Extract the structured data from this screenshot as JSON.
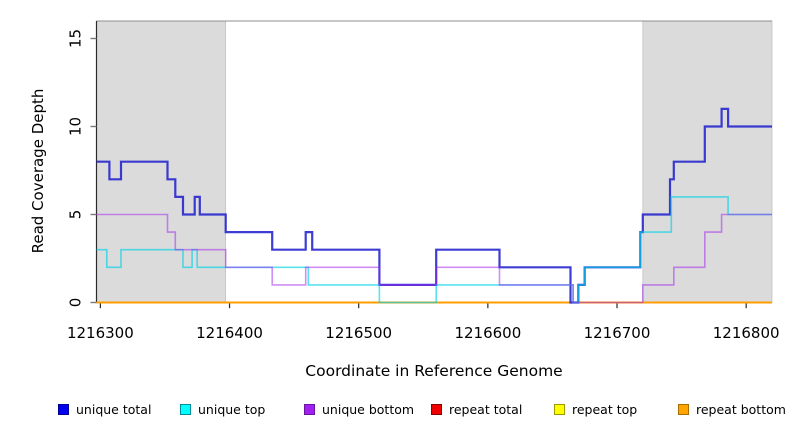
{
  "figure": {
    "xlabel": "Coordinate in Reference Genome",
    "ylabel": "Read Coverage Depth"
  },
  "legend": {
    "items": [
      {
        "label": "unique total",
        "color": "#0000EE",
        "border": "#000099"
      },
      {
        "label": "unique top",
        "color": "#00FFFF",
        "border": "#008B9B"
      },
      {
        "label": "unique bottom",
        "color": "#A020F0",
        "border": "#6A14A0"
      },
      {
        "label": "repeat total",
        "color": "#EE0000",
        "border": "#8B0000"
      },
      {
        "label": "repeat top",
        "color": "#FFFF00",
        "border": "#9B9B00"
      },
      {
        "label": "repeat bottom",
        "color": "#FFA500",
        "border": "#A86D00"
      }
    ]
  },
  "chart_data": {
    "type": "line",
    "subtype": "step",
    "title": "",
    "xlabel": "Coordinate in Reference Genome",
    "ylabel": "Read Coverage Depth",
    "xlim": [
      1216297,
      1216820
    ],
    "ylim": [
      0,
      16
    ],
    "x_ticks": [
      1216300,
      1216400,
      1216500,
      1216600,
      1216700,
      1216800
    ],
    "y_ticks": [
      0,
      5,
      10,
      15
    ],
    "grid": false,
    "legend_position": "bottom",
    "shaded_regions": [
      {
        "x0": 1216297,
        "x1": 1216397,
        "color": "#DBDBDB"
      },
      {
        "x0": 1216720,
        "x1": 1216820,
        "color": "#DBDBDB"
      }
    ],
    "series": [
      {
        "name": "unique total",
        "color": "#2222CE",
        "opacity": 0.88,
        "width": 2.2,
        "points": [
          [
            1216297,
            8
          ],
          [
            1216307,
            7
          ],
          [
            1216316,
            8
          ],
          [
            1216352,
            7
          ],
          [
            1216358,
            6
          ],
          [
            1216364,
            5
          ],
          [
            1216373,
            6
          ],
          [
            1216377,
            5
          ],
          [
            1216397,
            4
          ],
          [
            1216433,
            3
          ],
          [
            1216459,
            4
          ],
          [
            1216464,
            3
          ],
          [
            1216516,
            1
          ],
          [
            1216560,
            3
          ],
          [
            1216609,
            2
          ],
          [
            1216664,
            0
          ],
          [
            1216670,
            1
          ],
          [
            1216675,
            2
          ],
          [
            1216718,
            4
          ],
          [
            1216720,
            5
          ],
          [
            1216741,
            7
          ],
          [
            1216744,
            8
          ],
          [
            1216768,
            10
          ],
          [
            1216781,
            11
          ],
          [
            1216786,
            10
          ]
        ]
      },
      {
        "name": "unique top",
        "color": "#00D2E6",
        "opacity": 0.65,
        "width": 1.6,
        "points": [
          [
            1216297,
            3
          ],
          [
            1216305,
            2
          ],
          [
            1216316,
            3
          ],
          [
            1216364,
            2
          ],
          [
            1216371,
            3
          ],
          [
            1216375,
            2
          ],
          [
            1216461,
            1
          ],
          [
            1216516,
            0
          ],
          [
            1216560,
            1
          ],
          [
            1216666,
            0
          ],
          [
            1216670,
            1
          ],
          [
            1216675,
            2
          ],
          [
            1216718,
            4
          ],
          [
            1216742,
            6
          ],
          [
            1216786,
            5
          ]
        ]
      },
      {
        "name": "unique bottom",
        "color": "#A020F0",
        "opacity": 0.5,
        "width": 1.6,
        "points": [
          [
            1216297,
            5
          ],
          [
            1216352,
            4
          ],
          [
            1216358,
            3
          ],
          [
            1216397,
            2
          ],
          [
            1216433,
            1
          ],
          [
            1216459,
            2
          ],
          [
            1216516,
            1
          ],
          [
            1216560,
            2
          ],
          [
            1216609,
            1
          ],
          [
            1216666,
            0
          ],
          [
            1216720,
            1
          ],
          [
            1216744,
            2
          ],
          [
            1216768,
            4
          ],
          [
            1216781,
            5
          ]
        ]
      },
      {
        "name": "repeat total",
        "color": "#E00000",
        "opacity": 1,
        "width": 1.4,
        "points": [
          [
            1216297,
            0
          ]
        ]
      },
      {
        "name": "repeat top",
        "color": "#F0F000",
        "opacity": 1,
        "width": 1.4,
        "points": [
          [
            1216297,
            0
          ]
        ]
      },
      {
        "name": "repeat bottom",
        "color": "#FF9D00",
        "opacity": 1,
        "width": 2,
        "points": [
          [
            1216297,
            0
          ]
        ]
      }
    ],
    "draw_order": [
      3,
      4,
      5,
      0,
      1,
      2
    ]
  }
}
